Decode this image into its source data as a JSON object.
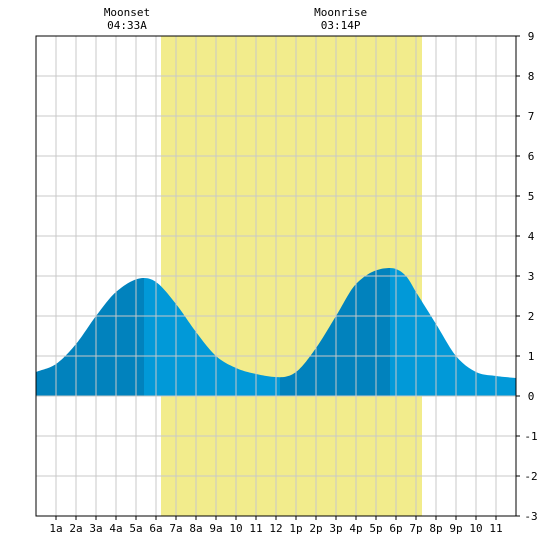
{
  "chart_data": {
    "type": "area",
    "title": "",
    "xlabel": "",
    "ylabel": "",
    "x_range_hours": [
      0,
      24
    ],
    "ylim": [
      -3,
      9
    ],
    "y_ticks": [
      -3,
      -2,
      -1,
      0,
      1,
      2,
      3,
      4,
      5,
      6,
      7,
      8,
      9
    ],
    "x_tick_labels": [
      "1a",
      "2a",
      "3a",
      "4a",
      "5a",
      "6a",
      "7a",
      "8a",
      "9a",
      "10",
      "11",
      "12",
      "1p",
      "2p",
      "3p",
      "4p",
      "5p",
      "6p",
      "7p",
      "8p",
      "9p",
      "10",
      "11"
    ],
    "grid": true,
    "daylight_band_hours": [
      6.25,
      19.3
    ],
    "moon_events": [
      {
        "label": "Moonset",
        "time": "04:33A",
        "hour": 4.55
      },
      {
        "label": "Moonrise",
        "time": "03:14P",
        "hour": 15.23
      }
    ],
    "tide_series": {
      "x_hours": [
        0,
        1,
        2,
        3,
        4,
        5.4,
        6,
        7,
        8,
        9,
        10,
        11,
        12.2,
        13,
        14,
        15,
        16,
        17.7,
        18.5,
        19,
        20,
        21,
        22,
        23,
        24
      ],
      "y_feet": [
        0.6,
        0.8,
        1.3,
        2.0,
        2.6,
        2.95,
        2.85,
        2.3,
        1.6,
        1.0,
        0.7,
        0.55,
        0.47,
        0.6,
        1.2,
        2.0,
        2.8,
        3.2,
        3.0,
        2.6,
        1.8,
        1.0,
        0.6,
        0.5,
        0.45
      ]
    },
    "extremes": [
      {
        "type": "high",
        "hour": 5.4,
        "value": 2.95
      },
      {
        "type": "low",
        "hour": 12.2,
        "value": 0.47
      },
      {
        "type": "high",
        "hour": 17.7,
        "value": 3.2
      }
    ],
    "colors": {
      "daylight": "#f2ec8c",
      "water_dark": "#0182bd",
      "water_light": "#0199d8",
      "grid": "#c8c8c8",
      "frame": "#000000"
    }
  }
}
